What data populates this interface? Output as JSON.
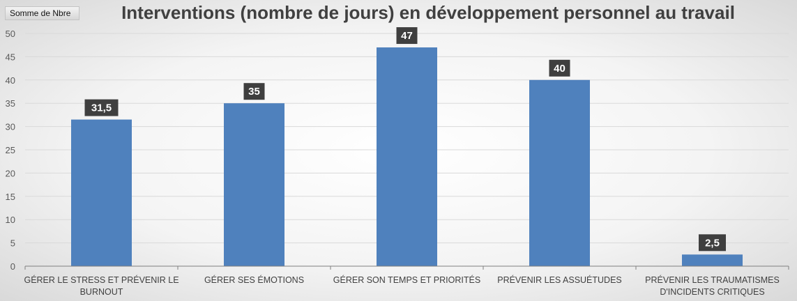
{
  "field_button": "Somme de Nbre",
  "chart_data": {
    "type": "bar",
    "title": "Interventions (nombre de jours) en développement personnel au travail",
    "xlabel": "",
    "ylabel": "",
    "categories": [
      [
        "GÉRER LE STRESS ET PRÉVENIR LE",
        "BURNOUT"
      ],
      [
        "GÉRER SES ÉMOTIONS"
      ],
      [
        "GÉRER SON TEMPS ET PRIORITÉS"
      ],
      [
        "PRÉVENIR LES ASSUÉTUDES"
      ],
      [
        "PRÉVENIR LES TRAUMATISMES",
        "D'INCIDENTS CRITIQUES"
      ]
    ],
    "values": [
      31.5,
      35,
      47,
      40,
      2.5
    ],
    "data_labels": [
      "31,5",
      "35",
      "47",
      "40",
      "2,5"
    ],
    "ylim": [
      0,
      50
    ],
    "yticks": [
      0,
      5,
      10,
      15,
      20,
      25,
      30,
      35,
      40,
      45,
      50
    ],
    "grid": true,
    "legend": "none",
    "colors": {
      "bar": "#4f81bd",
      "label_bg": "#3f3f3f",
      "grid": "#d9d9d9",
      "axis": "#7f7f7f"
    }
  }
}
